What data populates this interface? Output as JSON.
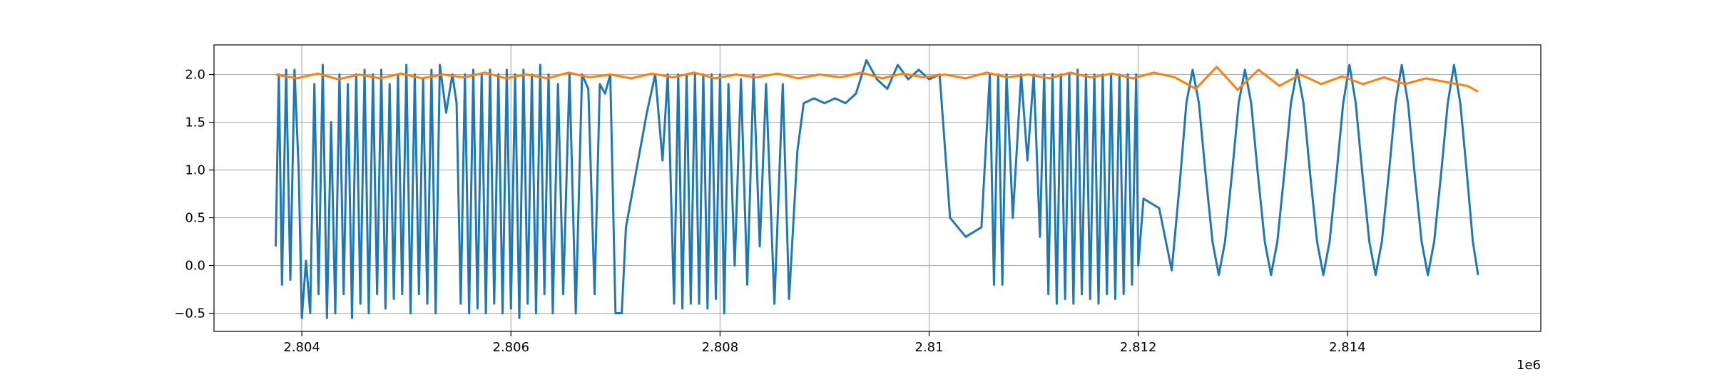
{
  "chart_data": {
    "type": "line",
    "xlim": [
      2.80316,
      2.81585
    ],
    "ylim": [
      -0.69,
      2.31
    ],
    "xticks": [
      2.804,
      2.806,
      2.808,
      2.81,
      2.812,
      2.814
    ],
    "yticks": [
      {
        "value": -0.5,
        "label": "−0.5"
      },
      {
        "value": 0,
        "label": "0.0"
      },
      0.5,
      {
        "value": 1,
        "label": "1.0"
      },
      1.5,
      {
        "value": 2,
        "label": "2.0"
      }
    ],
    "x_offset_label": "1e6",
    "grid": true,
    "series": [
      {
        "color": "#1f77b4",
        "x": [
          2.80375,
          2.80378,
          2.80381,
          2.80385,
          2.80389,
          2.80393,
          2.80397,
          2.804,
          2.80404,
          2.80408,
          2.80412,
          2.80416,
          2.8042,
          2.80424,
          2.80428,
          2.80432,
          2.80436,
          2.8044,
          2.80444,
          2.80448,
          2.80452,
          2.80456,
          2.8046,
          2.80464,
          2.80468,
          2.80472,
          2.80476,
          2.8048,
          2.80484,
          2.80488,
          2.80492,
          2.80496,
          2.805,
          2.80504,
          2.80508,
          2.80512,
          2.80516,
          2.8052,
          2.80524,
          2.80528,
          2.80532,
          2.80538,
          2.80544,
          2.80548,
          2.80552,
          2.80556,
          2.8056,
          2.80564,
          2.80568,
          2.80572,
          2.80576,
          2.8058,
          2.80584,
          2.80588,
          2.80592,
          2.80596,
          2.806,
          2.80604,
          2.80608,
          2.80612,
          2.80616,
          2.8062,
          2.80624,
          2.80628,
          2.80632,
          2.80636,
          2.8064,
          2.80645,
          2.8065,
          2.80656,
          2.80662,
          2.80668,
          2.80674,
          2.8068,
          2.80685,
          2.8069,
          2.80695,
          2.807,
          2.80706,
          2.8071,
          2.8072,
          2.8073,
          2.80738,
          2.80745,
          2.8075,
          2.80756,
          2.8076,
          2.80764,
          2.80768,
          2.80772,
          2.80776,
          2.8078,
          2.80784,
          2.80788,
          2.80792,
          2.80796,
          2.808,
          2.80804,
          2.80808,
          2.80814,
          2.8082,
          2.80826,
          2.80832,
          2.80838,
          2.80844,
          2.80852,
          2.8086,
          2.80866,
          2.80874,
          2.8088,
          2.8089,
          2.809,
          2.8091,
          2.8092,
          2.8093,
          2.8094,
          2.8095,
          2.8096,
          2.8097,
          2.8098,
          2.8099,
          2.81,
          2.8101,
          2.8102,
          2.81035,
          2.8105,
          2.81058,
          2.81062,
          2.81066,
          2.8107,
          2.81074,
          2.8108,
          2.81088,
          2.81094,
          2.811,
          2.81106,
          2.8111,
          2.81114,
          2.81118,
          2.81122,
          2.81126,
          2.8113,
          2.81134,
          2.81138,
          2.81142,
          2.81146,
          2.8115,
          2.81154,
          2.81158,
          2.81162,
          2.81166,
          2.8117,
          2.81174,
          2.81178,
          2.81182,
          2.81186,
          2.8119,
          2.81194,
          2.81198,
          2.812,
          2.81205,
          2.8122,
          2.81232,
          2.8124,
          2.81246,
          2.81252,
          2.81258,
          2.81264,
          2.81271,
          2.81277,
          2.81283,
          2.8129,
          2.81296,
          2.81302,
          2.81308,
          2.81314,
          2.81321,
          2.81327,
          2.81333,
          2.8134,
          2.81346,
          2.81352,
          2.81358,
          2.81364,
          2.81371,
          2.81377,
          2.81383,
          2.8139,
          2.81396,
          2.81402,
          2.81408,
          2.81414,
          2.81421,
          2.81427,
          2.81433,
          2.8144,
          2.81446,
          2.81452,
          2.81458,
          2.81464,
          2.81471,
          2.81477,
          2.81483,
          2.8149,
          2.81496,
          2.81502,
          2.81508,
          2.81514,
          2.8152,
          2.81525
        ],
        "values": [
          0.2,
          2.0,
          -0.2,
          2.05,
          -0.15,
          2.05,
          1.0,
          -0.55,
          0.05,
          -0.5,
          1.9,
          -0.3,
          2.1,
          -0.55,
          1.5,
          -0.5,
          2.0,
          -0.3,
          1.9,
          -0.55,
          2.0,
          -0.4,
          2.05,
          -0.5,
          2.0,
          -0.3,
          2.05,
          -0.45,
          1.9,
          -0.35,
          2.0,
          -0.3,
          2.1,
          -0.5,
          2.0,
          -0.3,
          1.95,
          -0.4,
          2.05,
          -0.5,
          2.1,
          1.6,
          2.0,
          1.7,
          -0.4,
          2.0,
          -0.5,
          2.05,
          -0.45,
          2.0,
          -0.5,
          2.05,
          -0.4,
          2.0,
          -0.5,
          2.05,
          -0.45,
          2.0,
          -0.55,
          2.05,
          -0.4,
          2.0,
          -0.5,
          2.1,
          -0.3,
          2.0,
          -0.5,
          1.9,
          -0.3,
          2.0,
          -0.5,
          2.0,
          1.85,
          -0.3,
          1.9,
          1.8,
          2.0,
          -0.5,
          -0.5,
          0.4,
          1.0,
          1.6,
          2.0,
          1.1,
          2.0,
          -0.4,
          2.0,
          -0.45,
          2.0,
          -0.4,
          2.0,
          -0.4,
          2.0,
          -0.45,
          2.0,
          -0.35,
          2.0,
          -0.5,
          1.9,
          0.0,
          1.95,
          -0.2,
          2.0,
          0.2,
          1.9,
          -0.4,
          1.9,
          -0.35,
          1.2,
          1.7,
          1.75,
          1.7,
          1.75,
          1.7,
          1.8,
          2.15,
          1.95,
          1.85,
          2.1,
          1.95,
          2.05,
          1.95,
          2.0,
          0.5,
          0.3,
          0.4,
          2.0,
          -0.2,
          2.0,
          -0.2,
          2.0,
          0.5,
          2.0,
          1.1,
          2.0,
          0.3,
          2.0,
          -0.3,
          2.0,
          -0.4,
          2.0,
          -0.35,
          2.0,
          -0.4,
          2.05,
          -0.3,
          2.0,
          -0.35,
          2.0,
          -0.4,
          2.0,
          -0.3,
          2.0,
          -0.35,
          2.0,
          -0.3,
          2.0,
          -0.2,
          2.0,
          0.0,
          0.7,
          0.6,
          -0.05,
          0.9,
          1.7,
          2.05,
          1.7,
          1.0,
          0.25,
          -0.1,
          0.25,
          1.0,
          1.7,
          2.05,
          1.7,
          1.0,
          0.25,
          -0.1,
          0.25,
          1.0,
          1.7,
          2.05,
          1.7,
          1.0,
          0.25,
          -0.1,
          0.25,
          1.0,
          1.7,
          2.1,
          1.7,
          1.0,
          0.25,
          -0.1,
          0.25,
          1.0,
          1.7,
          2.1,
          1.7,
          1.0,
          0.25,
          -0.1,
          0.25,
          1.0,
          1.7,
          2.1,
          1.7,
          1.0,
          0.25,
          -0.1
        ]
      },
      {
        "color": "#ff7f0e",
        "x": [
          2.80375,
          2.80395,
          2.80415,
          2.80435,
          2.80455,
          2.80475,
          2.80495,
          2.80515,
          2.80535,
          2.80555,
          2.80575,
          2.80595,
          2.80615,
          2.80635,
          2.80655,
          2.80675,
          2.80695,
          2.80715,
          2.80735,
          2.80755,
          2.80775,
          2.80795,
          2.80815,
          2.80835,
          2.80855,
          2.80875,
          2.80895,
          2.80915,
          2.80935,
          2.80955,
          2.80975,
          2.80995,
          2.81015,
          2.81035,
          2.81055,
          2.81075,
          2.81095,
          2.81115,
          2.81135,
          2.81155,
          2.81175,
          2.81195,
          2.81215,
          2.81235,
          2.81255,
          2.81275,
          2.81295,
          2.81315,
          2.81335,
          2.81355,
          2.81375,
          2.81395,
          2.81415,
          2.81435,
          2.81455,
          2.81475,
          2.81495,
          2.81515,
          2.81525
        ],
        "values": [
          2.0,
          1.96,
          2.01,
          1.95,
          2.0,
          1.96,
          2.01,
          1.96,
          2.0,
          1.97,
          2.02,
          1.96,
          2.0,
          1.96,
          2.02,
          1.97,
          2.0,
          1.96,
          2.01,
          1.97,
          2.02,
          1.96,
          2.0,
          1.97,
          2.01,
          1.96,
          2.0,
          1.97,
          2.02,
          1.96,
          2.01,
          1.97,
          2.0,
          1.96,
          2.02,
          1.97,
          2.0,
          1.96,
          2.02,
          1.97,
          2.01,
          1.96,
          2.02,
          1.97,
          1.85,
          2.08,
          1.84,
          2.05,
          1.88,
          2.0,
          1.9,
          1.98,
          1.9,
          1.97,
          1.9,
          1.96,
          1.92,
          1.88,
          1.82
        ]
      }
    ]
  }
}
